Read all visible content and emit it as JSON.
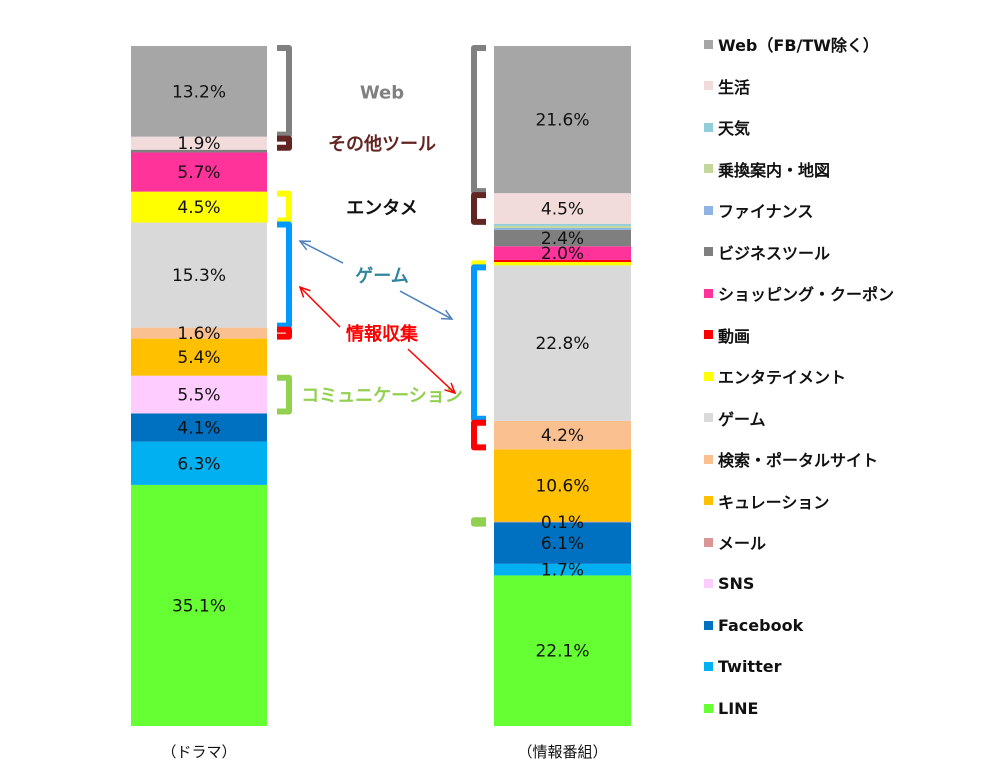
{
  "chart_data": {
    "type": "bar",
    "stacked": true,
    "categories": [
      "（ドラマ）",
      "（情報番組）"
    ],
    "series": [
      {
        "name": "LINE",
        "color": "#66FF33",
        "values": [
          35.1,
          22.1
        ]
      },
      {
        "name": "Twitter",
        "color": "#00B0F0",
        "values": [
          6.3,
          1.7
        ]
      },
      {
        "name": "Facebook",
        "color": "#0070C0",
        "values": [
          4.1,
          6.1
        ]
      },
      {
        "name": "SNS",
        "color": "#FFCCFF",
        "values": [
          5.5,
          0.0
        ]
      },
      {
        "name": "メール",
        "color": "#D99694",
        "values": [
          0.0,
          0.1
        ]
      },
      {
        "name": "キュレーション",
        "color": "#FFC000",
        "values": [
          5.4,
          10.6
        ]
      },
      {
        "name": "検索・ポータルサイト",
        "color": "#FAC090",
        "values": [
          1.6,
          4.2
        ]
      },
      {
        "name": "ゲーム",
        "color": "#D9D9D9",
        "values": [
          15.3,
          22.8
        ]
      },
      {
        "name": "エンタテイメント",
        "color": "#FFFF00",
        "values": [
          4.5,
          0.5
        ]
      },
      {
        "name": "動画",
        "color": "#FF0000",
        "values": [
          0.0,
          0.3
        ]
      },
      {
        "name": "ショッピング・クーポン",
        "color": "#FF3399",
        "values": [
          5.7,
          2.0
        ]
      },
      {
        "name": "ビジネスツール",
        "color": "#7F7F7F",
        "values": [
          0.4,
          2.4
        ]
      },
      {
        "name": "ファイナンス",
        "color": "#8DB4E2",
        "values": [
          0.0,
          0.3
        ]
      },
      {
        "name": "乗換案内・地図",
        "color": "#C4D79B",
        "values": [
          0.0,
          0.3
        ]
      },
      {
        "name": "天気",
        "color": "#92CDDC",
        "values": [
          0.0,
          0.3
        ]
      },
      {
        "name": "生活",
        "color": "#F2DCDB",
        "values": [
          1.9,
          4.5
        ]
      },
      {
        "name": "Web（FB/TW除く）",
        "color": "#A6A6A6",
        "values": [
          13.2,
          21.6
        ]
      }
    ],
    "data_labels": [
      [
        {
          "series": "Web（FB/TW除く）",
          "text": "13.2%"
        },
        {
          "series": "生活",
          "text": "1.9%"
        },
        {
          "series": "ショッピング・クーポン",
          "text": "5.7%"
        },
        {
          "series": "エンタテイメント",
          "text": "4.5%"
        },
        {
          "series": "ゲーム",
          "text": "15.3%"
        },
        {
          "series": "検索・ポータルサイト",
          "text": "1.6%"
        },
        {
          "series": "キュレーション",
          "text": "5.4%"
        },
        {
          "series": "SNS",
          "text": "5.5%"
        },
        {
          "series": "Facebook",
          "text": "4.1%"
        },
        {
          "series": "Twitter",
          "text": "6.3%"
        },
        {
          "series": "LINE",
          "text": "35.1%"
        }
      ],
      [
        {
          "series": "Web（FB/TW除く）",
          "text": "21.6%"
        },
        {
          "series": "生活",
          "text": "4.5%"
        },
        {
          "series": "ビジネスツール",
          "text": "2.4%"
        },
        {
          "series": "ショッピング・クーポン",
          "text": "2.0%"
        },
        {
          "series": "ゲーム",
          "text": "22.8%"
        },
        {
          "series": "検索・ポータルサイト",
          "text": "4.2%"
        },
        {
          "series": "キュレーション",
          "text": "10.6%"
        },
        {
          "series": "メール",
          "text": "0.1%"
        },
        {
          "series": "Facebook",
          "text": "6.1%"
        },
        {
          "series": "Twitter",
          "text": "1.7%"
        },
        {
          "series": "LINE",
          "text": "22.1%"
        }
      ]
    ],
    "groups": [
      {
        "label": "Web",
        "color": "#808080",
        "left": "Web（FB/TW除く）",
        "right": "Web（FB/TW除く）"
      },
      {
        "label": "その他ツール",
        "color": "#632523",
        "left": "生活",
        "right": "生活"
      },
      {
        "label": "エンタメ",
        "color": "#FFFF00",
        "label_color": "#111111",
        "left": "エンタテイメント",
        "right": "エンタテイメント"
      },
      {
        "label": "ゲーム",
        "color": "#0099FF",
        "label_color": "#31859C",
        "left": "ゲーム",
        "right": "ゲーム"
      },
      {
        "label": "情報収集",
        "color": "#FF0000",
        "left": "検索・ポータルサイト",
        "right": "検索・ポータルサイト"
      },
      {
        "label": "コミュニケーション",
        "color": "#92D050",
        "left": "SNS",
        "right": "メール"
      }
    ],
    "legend_position": "right",
    "ylim": [
      0,
      100
    ],
    "grid": false
  }
}
